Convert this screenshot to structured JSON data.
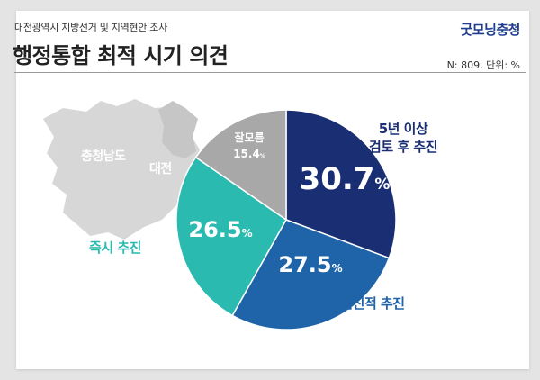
{
  "header": {
    "subtitle": "대전광역시 지방선거 및 지역현안 조사",
    "title": "행정통합 최적 시기 의견",
    "brand": "굿모닝충청",
    "note": "N: 809, 단위: %"
  },
  "map": {
    "region_left": "충청남도",
    "region_right": "대전"
  },
  "chart_data": {
    "type": "pie",
    "title": "행정통합 최적 시기 의견",
    "unit": "%",
    "start_angle_deg": 0,
    "direction": "clockwise",
    "slices": [
      {
        "label": "5년 이상\n검토 후 추진",
        "value": 30.7,
        "color": "#1a2f73",
        "label_color": "#1a2f73"
      },
      {
        "label": "점진적 추진",
        "value": 27.5,
        "color": "#1f63a8",
        "label_color": "#1f63a8"
      },
      {
        "label": "즉시 추진",
        "value": 26.5,
        "color": "#2bbab0",
        "label_color": "#2bbab0"
      },
      {
        "label": "잘모름",
        "value": 15.4,
        "color": "#a8a8a8",
        "label_color": "#ffffff"
      }
    ]
  }
}
